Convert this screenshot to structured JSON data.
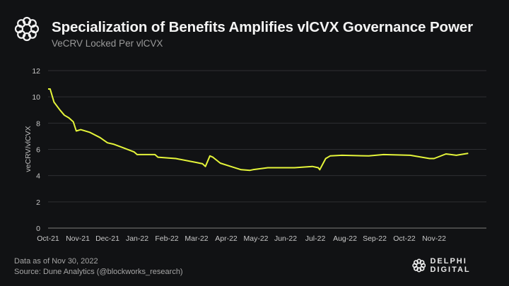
{
  "header": {
    "title": "Specialization of Benefits Amplifies vlCVX Governance Power",
    "subtitle": "VeCRV Locked Per vlCVX",
    "logo_icon": "delphi-knot-icon"
  },
  "footer": {
    "data_date": "Data as of Nov 30, 2022",
    "source": "Source: Dune Analytics  (@blockworks_research)",
    "brand": "DELPHI DIGITAL"
  },
  "chart_data": {
    "type": "line",
    "title": "Specialization of Benefits Amplifies vlCVX Governance Power",
    "subtitle": "VeCRV Locked Per vlCVX",
    "xlabel": "",
    "ylabel": "veCRV/vlCVX",
    "ylim": [
      0,
      12
    ],
    "yticks": [
      "0",
      "2",
      "4",
      "6",
      "8",
      "10",
      "12"
    ],
    "xticks": [
      "Oct-21",
      "Nov-21",
      "Dec-21",
      "Jan-22",
      "Feb-22",
      "Mar-22",
      "Apr-22",
      "May-22",
      "Jun-22",
      "Jul-22",
      "Aug-22",
      "Sep-22",
      "Oct-22",
      "Nov-22"
    ],
    "grid": true,
    "line_color": "#e5f53a",
    "series": [
      {
        "name": "veCRV/vlCVX",
        "x": [
          0.0,
          0.07,
          0.2,
          0.4,
          0.55,
          0.7,
          0.85,
          0.95,
          1.1,
          1.4,
          1.75,
          2.0,
          2.2,
          2.55,
          2.9,
          3.0,
          3.6,
          3.7,
          4.3,
          5.0,
          5.2,
          5.3,
          5.45,
          5.55,
          5.8,
          6.15,
          6.5,
          6.8,
          6.9,
          7.4,
          8.3,
          8.9,
          9.1,
          9.15,
          9.35,
          9.5,
          9.9,
          10.8,
          11.3,
          12.2,
          12.85,
          13.0,
          13.4,
          13.75,
          14.15
        ],
        "values": [
          10.6,
          10.6,
          9.6,
          9.0,
          8.6,
          8.4,
          8.1,
          7.4,
          7.5,
          7.3,
          6.9,
          6.5,
          6.4,
          6.1,
          5.8,
          5.6,
          5.6,
          5.4,
          5.3,
          5.0,
          4.9,
          4.7,
          5.5,
          5.4,
          4.95,
          4.7,
          4.45,
          4.4,
          4.45,
          4.6,
          4.6,
          4.7,
          4.6,
          4.45,
          5.3,
          5.5,
          5.55,
          5.5,
          5.6,
          5.55,
          5.3,
          5.3,
          5.65,
          5.55,
          5.7
        ]
      }
    ]
  }
}
